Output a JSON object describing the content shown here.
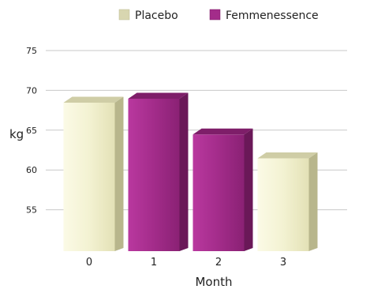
{
  "chart_data": {
    "type": "bar",
    "categories": [
      "0",
      "1",
      "2",
      "3"
    ],
    "values": [
      69,
      69.5,
      65,
      62
    ],
    "bar_series": [
      "Placebo",
      "Femmenessence",
      "Femmenessence",
      "Placebo"
    ],
    "series": [
      {
        "name": "Placebo",
        "color": "#F2F1CF"
      },
      {
        "name": "Femmenessence",
        "color": "#A32C8A"
      }
    ],
    "title": "",
    "xlabel": "Month",
    "ylabel": "kg",
    "ylim": [
      50,
      75
    ],
    "yticks": [
      55,
      60,
      65,
      70,
      75
    ],
    "grid": true,
    "legend": "top"
  }
}
